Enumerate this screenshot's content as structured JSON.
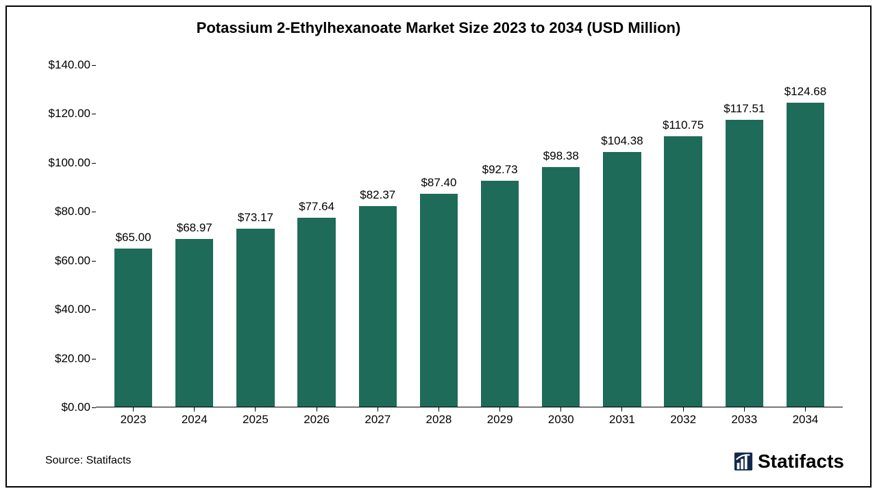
{
  "chart": {
    "type": "bar",
    "title": "Potassium 2-Ethylhexanoate Market Size 2023 to 2034 (USD Million)",
    "title_fontsize": 22,
    "categories": [
      "2023",
      "2024",
      "2025",
      "2026",
      "2027",
      "2028",
      "2029",
      "2030",
      "2031",
      "2032",
      "2033",
      "2034"
    ],
    "values": [
      65.0,
      68.97,
      73.17,
      77.64,
      82.37,
      87.4,
      92.73,
      98.38,
      104.38,
      110.75,
      117.51,
      124.68
    ],
    "value_labels": [
      "$65.00",
      "$68.97",
      "$73.17",
      "$77.64",
      "$82.37",
      "$87.40",
      "$92.73",
      "$98.38",
      "$104.38",
      "$110.75",
      "$117.51",
      "$124.68"
    ],
    "bar_color": "#1e6b5a",
    "background_color": "#ffffff",
    "frame_border_color": "#000000",
    "axis_color": "#000000",
    "ylim": [
      0,
      140
    ],
    "ytick_step": 20,
    "ytick_labels": [
      "$0.00",
      "$20.00",
      "$40.00",
      "$60.00",
      "$80.00",
      "$100.00",
      "$120.00",
      "$140.00"
    ],
    "bar_width_ratio": 0.62,
    "value_label_fontsize": 17,
    "axis_label_fontsize": 17,
    "x_label_fontsize": 17
  },
  "footer": {
    "source_text": "Source: Statifacts",
    "source_fontsize": 16,
    "brand_text": "Statifacts",
    "brand_fontsize": 28,
    "brand_icon_color": "#13294b"
  }
}
